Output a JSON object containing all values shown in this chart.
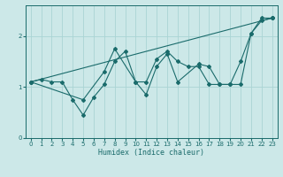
{
  "xlabel": "Humidex (Indice chaleur)",
  "ylabel": "",
  "bg_color": "#cce8e8",
  "grid_color": "#aad4d4",
  "line_color": "#1a6b6b",
  "xlim": [
    -0.5,
    23.5
  ],
  "ylim": [
    0,
    2.6
  ],
  "yticks": [
    0,
    1,
    2
  ],
  "xticks": [
    0,
    1,
    2,
    3,
    4,
    5,
    6,
    7,
    8,
    9,
    10,
    11,
    12,
    13,
    14,
    15,
    16,
    17,
    18,
    19,
    20,
    21,
    22,
    23
  ],
  "series": [
    {
      "x": [
        0,
        1,
        2,
        3,
        4,
        5,
        6,
        7,
        8,
        9,
        10,
        11,
        12,
        13,
        14,
        15,
        16,
        17,
        18,
        19,
        20,
        21,
        22,
        23
      ],
      "y": [
        1.1,
        1.15,
        1.1,
        1.1,
        0.75,
        0.45,
        0.8,
        1.05,
        1.5,
        1.7,
        1.1,
        1.1,
        1.55,
        1.7,
        1.5,
        1.4,
        1.4,
        1.05,
        1.05,
        1.05,
        1.5,
        2.05,
        2.3,
        2.35
      ]
    },
    {
      "x": [
        0,
        5,
        7,
        8,
        10,
        11,
        12,
        13,
        14,
        16,
        17,
        18,
        19,
        20,
        21,
        22,
        23
      ],
      "y": [
        1.1,
        0.75,
        1.3,
        1.75,
        1.1,
        0.85,
        1.4,
        1.65,
        1.1,
        1.45,
        1.4,
        1.05,
        1.05,
        1.05,
        2.05,
        2.35,
        2.35
      ]
    },
    {
      "x": [
        0,
        23
      ],
      "y": [
        1.1,
        2.35
      ]
    }
  ]
}
